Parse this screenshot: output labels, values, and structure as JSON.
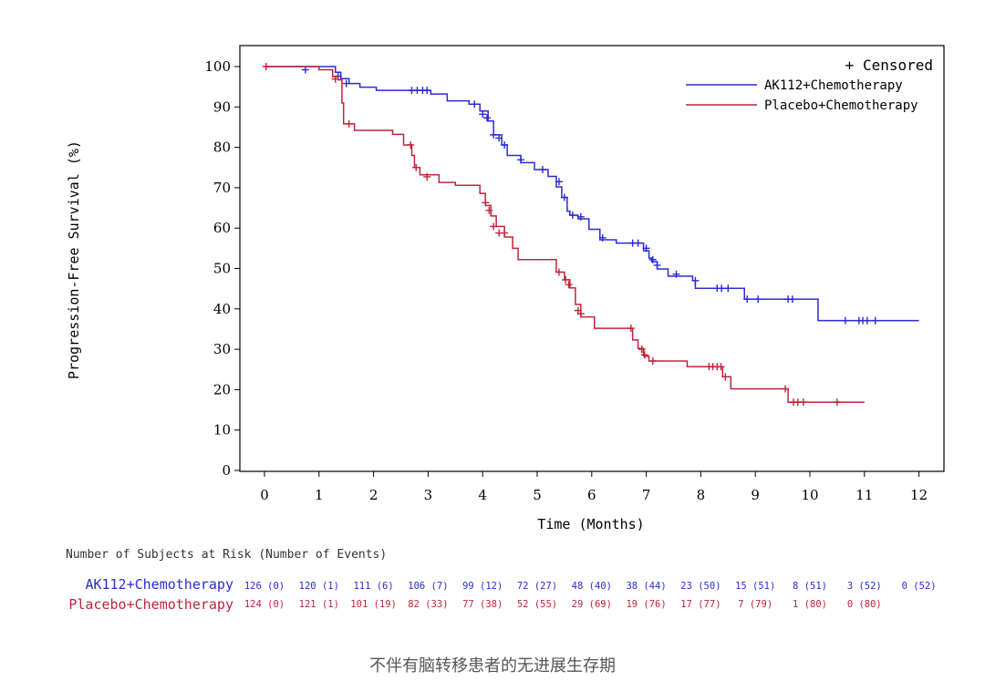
{
  "chart_data": {
    "type": "line",
    "title": "",
    "xlabel": "Time (Months)",
    "ylabel": "Progression-Free Survival (%)",
    "xlim": [
      0,
      12
    ],
    "ylim": [
      0,
      100
    ],
    "x_ticks": [
      0,
      1,
      2,
      3,
      4,
      5,
      6,
      7,
      8,
      9,
      10,
      11,
      12
    ],
    "y_ticks": [
      0,
      10,
      20,
      30,
      40,
      50,
      60,
      70,
      80,
      90,
      100
    ],
    "grid": false,
    "legend_position": "top-right",
    "censored_label": "+ Censored",
    "series": [
      {
        "name": "AK112+Chemotherapy",
        "color": "#2b2bd6",
        "step_x": [
          0,
          1.3,
          1.4,
          1.55,
          1.75,
          2.05,
          2.8,
          3.05,
          3.35,
          3.75,
          3.95,
          4.1,
          4.2,
          4.35,
          4.45,
          4.7,
          4.95,
          5.2,
          5.35,
          5.45,
          5.55,
          5.6,
          5.75,
          5.95,
          6.15,
          6.45,
          6.95,
          7.05,
          7.1,
          7.2,
          7.4,
          7.85,
          7.9,
          8.75,
          8.8,
          10.15,
          12
        ],
        "step_y": [
          100,
          98.6,
          97,
          95.8,
          94.9,
          94.1,
          94.1,
          93.2,
          91.5,
          90.7,
          89.0,
          86.5,
          83.1,
          80.6,
          78.0,
          76.2,
          74.5,
          72.8,
          70.2,
          67.6,
          64.2,
          63.2,
          62.3,
          59.7,
          57.1,
          56.3,
          54.4,
          52.6,
          51.7,
          49.9,
          48.1,
          47.0,
          45.1,
          45.1,
          42.4,
          37.1,
          37.1
        ],
        "censored": [
          {
            "x": 0.75,
            "y": 99.2
          },
          {
            "x": 1.35,
            "y": 97.6
          },
          {
            "x": 1.5,
            "y": 95.8
          },
          {
            "x": 2.7,
            "y": 94.1
          },
          {
            "x": 2.8,
            "y": 94.1
          },
          {
            "x": 2.9,
            "y": 94.1
          },
          {
            "x": 2.98,
            "y": 94.1
          },
          {
            "x": 3.85,
            "y": 90.7
          },
          {
            "x": 4.0,
            "y": 88.2
          },
          {
            "x": 4.08,
            "y": 87.3
          },
          {
            "x": 4.2,
            "y": 83.1
          },
          {
            "x": 4.3,
            "y": 82.3
          },
          {
            "x": 4.4,
            "y": 80.6
          },
          {
            "x": 4.7,
            "y": 76.9
          },
          {
            "x": 5.1,
            "y": 74.5
          },
          {
            "x": 5.4,
            "y": 71.5
          },
          {
            "x": 5.5,
            "y": 67.6
          },
          {
            "x": 5.65,
            "y": 63.2
          },
          {
            "x": 5.8,
            "y": 62.8
          },
          {
            "x": 6.2,
            "y": 57.6
          },
          {
            "x": 6.75,
            "y": 56.3
          },
          {
            "x": 6.85,
            "y": 56.3
          },
          {
            "x": 7.0,
            "y": 55.0
          },
          {
            "x": 7.12,
            "y": 52.2
          },
          {
            "x": 7.2,
            "y": 50.8
          },
          {
            "x": 7.55,
            "y": 48.6
          },
          {
            "x": 7.9,
            "y": 47.0
          },
          {
            "x": 8.3,
            "y": 45.1
          },
          {
            "x": 8.38,
            "y": 45.1
          },
          {
            "x": 8.5,
            "y": 45.1
          },
          {
            "x": 8.85,
            "y": 42.4
          },
          {
            "x": 9.05,
            "y": 42.4
          },
          {
            "x": 9.6,
            "y": 42.4
          },
          {
            "x": 9.68,
            "y": 42.4
          },
          {
            "x": 10.65,
            "y": 37.1
          },
          {
            "x": 10.9,
            "y": 37.1
          },
          {
            "x": 10.97,
            "y": 37.1
          },
          {
            "x": 11.05,
            "y": 37.1
          },
          {
            "x": 11.2,
            "y": 37.1
          }
        ]
      },
      {
        "name": "Placebo+Chemotherapy",
        "color": "#c0243a",
        "step_x": [
          0,
          1.0,
          1.25,
          1.35,
          1.42,
          1.45,
          1.65,
          2.35,
          2.55,
          2.7,
          2.75,
          2.85,
          3.2,
          3.5,
          3.95,
          4.05,
          4.15,
          4.25,
          4.4,
          4.55,
          4.65,
          5.35,
          5.5,
          5.6,
          5.7,
          5.8,
          6.05,
          6.75,
          6.85,
          6.95,
          7.05,
          7.75,
          8.25,
          8.4,
          8.55,
          9.6,
          9.65,
          11.0
        ],
        "step_y": [
          100,
          99.2,
          97.5,
          96.7,
          91.0,
          85.8,
          84.2,
          83.2,
          80.6,
          78.0,
          75.0,
          73.2,
          71.3,
          70.6,
          68.6,
          65.6,
          63.0,
          60.4,
          57.8,
          55.0,
          52.2,
          49.1,
          47.2,
          45.2,
          41.1,
          38.0,
          35.2,
          32.3,
          30.2,
          28.3,
          27.1,
          25.7,
          25.7,
          23.2,
          20.2,
          16.9,
          16.9,
          16.9
        ],
        "censored": [
          {
            "x": 0.03,
            "y": 100
          },
          {
            "x": 1.3,
            "y": 96.9
          },
          {
            "x": 1.55,
            "y": 85.8
          },
          {
            "x": 2.68,
            "y": 80.6
          },
          {
            "x": 2.78,
            "y": 75.0
          },
          {
            "x": 2.98,
            "y": 72.7
          },
          {
            "x": 4.05,
            "y": 66.3
          },
          {
            "x": 4.12,
            "y": 64.4
          },
          {
            "x": 4.2,
            "y": 60.4
          },
          {
            "x": 4.3,
            "y": 58.8
          },
          {
            "x": 4.4,
            "y": 58.8
          },
          {
            "x": 5.4,
            "y": 49.1
          },
          {
            "x": 5.52,
            "y": 47.2
          },
          {
            "x": 5.58,
            "y": 46.0
          },
          {
            "x": 5.75,
            "y": 39.6
          },
          {
            "x": 5.8,
            "y": 38.8
          },
          {
            "x": 6.72,
            "y": 35.2
          },
          {
            "x": 6.92,
            "y": 30.0
          },
          {
            "x": 6.97,
            "y": 28.6
          },
          {
            "x": 7.12,
            "y": 27.1
          },
          {
            "x": 8.15,
            "y": 25.7
          },
          {
            "x": 8.22,
            "y": 25.7
          },
          {
            "x": 8.3,
            "y": 25.7
          },
          {
            "x": 8.37,
            "y": 25.7
          },
          {
            "x": 8.45,
            "y": 23.2
          },
          {
            "x": 9.55,
            "y": 20.2
          },
          {
            "x": 9.7,
            "y": 16.9
          },
          {
            "x": 9.78,
            "y": 16.9
          },
          {
            "x": 9.88,
            "y": 16.9
          },
          {
            "x": 10.5,
            "y": 16.9
          }
        ]
      }
    ]
  },
  "risk_table": {
    "title": "Number of Subjects at Risk (Number of Events)",
    "rows": [
      {
        "name": "AK112+Chemotherapy",
        "color": "#2b2bd6",
        "values": [
          "126 (0)",
          "120 (1)",
          "111 (6)",
          "106 (7)",
          "99 (12)",
          "72 (27)",
          "48 (40)",
          "38 (44)",
          "23 (50)",
          "15 (51)",
          "8 (51)",
          "3 (52)",
          "0 (52)"
        ]
      },
      {
        "name": "Placebo+Chemotherapy",
        "color": "#c0243a",
        "values": [
          "124 (0)",
          "121 (1)",
          "101 (19)",
          "82 (33)",
          "77 (38)",
          "52 (55)",
          "29 (69)",
          "19 (76)",
          "17 (77)",
          "7 (79)",
          "1 (80)",
          "0 (80)"
        ]
      }
    ]
  },
  "caption": "不伴有脑转移患者的无进展生存期"
}
